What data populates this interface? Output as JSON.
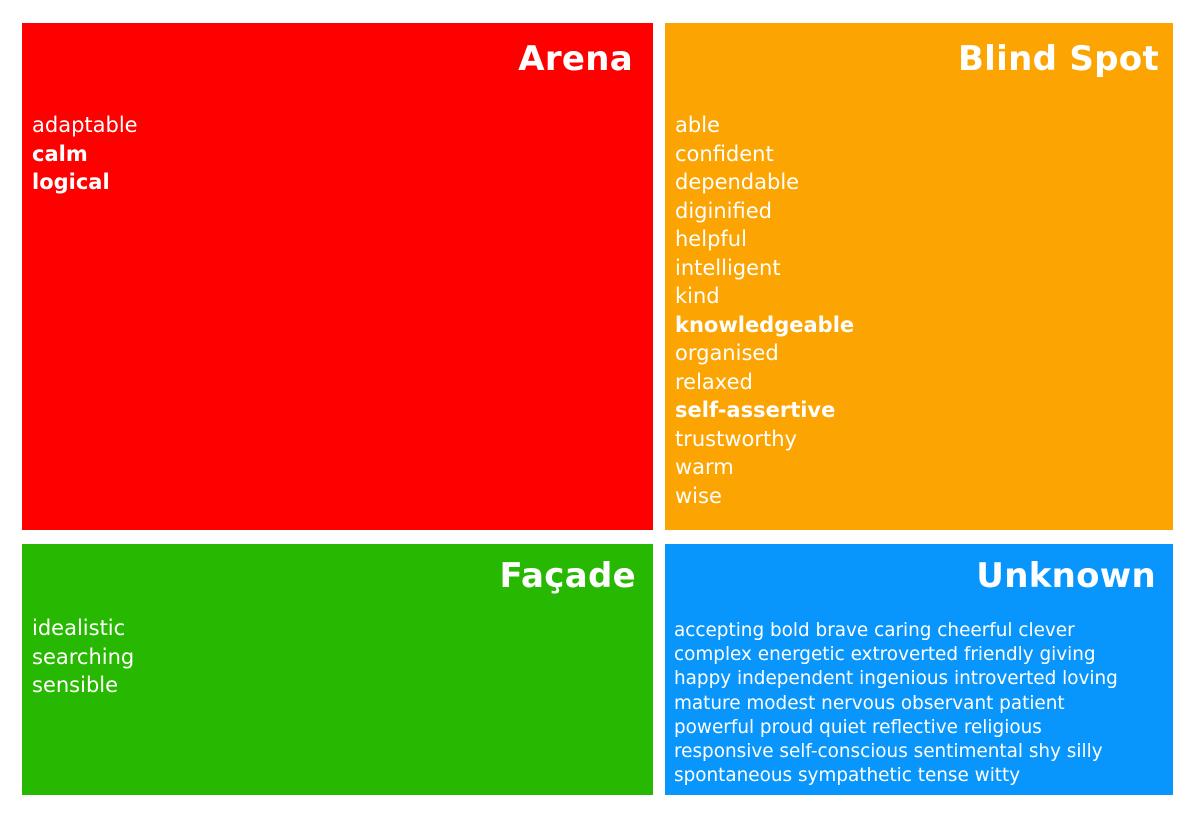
{
  "colors": {
    "arena": "#fe0000",
    "blind_spot": "#fba402",
    "facade": "#27b801",
    "unknown": "#0896fd"
  },
  "arena": {
    "title": "Arena",
    "words": [
      {
        "text": "adaptable",
        "bold": false
      },
      {
        "text": "calm",
        "bold": true
      },
      {
        "text": "logical",
        "bold": true
      }
    ]
  },
  "blind_spot": {
    "title": "Blind Spot",
    "words": [
      {
        "text": "able",
        "bold": false
      },
      {
        "text": "confident",
        "bold": false
      },
      {
        "text": "dependable",
        "bold": false
      },
      {
        "text": "diginified",
        "bold": false
      },
      {
        "text": "helpful",
        "bold": false
      },
      {
        "text": "intelligent",
        "bold": false
      },
      {
        "text": "kind",
        "bold": false
      },
      {
        "text": "knowledgeable",
        "bold": true
      },
      {
        "text": "organised",
        "bold": false
      },
      {
        "text": "relaxed",
        "bold": false
      },
      {
        "text": "self-assertive",
        "bold": true
      },
      {
        "text": "trustworthy",
        "bold": false
      },
      {
        "text": "warm",
        "bold": false
      },
      {
        "text": "wise",
        "bold": false
      }
    ]
  },
  "facade": {
    "title": "Façade",
    "words": [
      {
        "text": "idealistic",
        "bold": false
      },
      {
        "text": "searching",
        "bold": false
      },
      {
        "text": "sensible",
        "bold": false
      }
    ]
  },
  "unknown": {
    "title": "Unknown",
    "lines": [
      "accepting bold brave caring cheerful clever",
      "complex energetic extroverted friendly giving",
      "happy independent ingenious introverted loving",
      "mature modest nervous observant patient",
      "powerful proud quiet reflective religious",
      "responsive self-conscious sentimental shy silly",
      "spontaneous sympathetic tense witty"
    ]
  }
}
